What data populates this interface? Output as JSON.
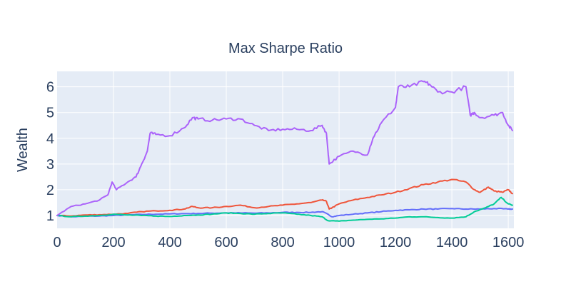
{
  "chart_data": {
    "type": "line",
    "title": "Max Sharpe Ratio",
    "xlabel": "",
    "ylabel": "Wealth",
    "xlim": [
      0,
      1620
    ],
    "ylim": [
      0.5,
      6.6
    ],
    "x_ticks": [
      0,
      200,
      400,
      600,
      800,
      1000,
      1200,
      1400,
      1600
    ],
    "y_ticks": [
      1,
      2,
      3,
      4,
      5,
      6
    ],
    "grid": true,
    "legend": "none",
    "plot_bg": "#e5ecf6",
    "series": [
      {
        "color": "#636efa",
        "points": [
          [
            0,
            1.0
          ],
          [
            50,
            0.95
          ],
          [
            100,
            0.97
          ],
          [
            150,
            0.98
          ],
          [
            200,
            1.0
          ],
          [
            250,
            1.02
          ],
          [
            300,
            1.04
          ],
          [
            350,
            1.05
          ],
          [
            400,
            1.06
          ],
          [
            450,
            1.07
          ],
          [
            500,
            1.08
          ],
          [
            550,
            1.09
          ],
          [
            600,
            1.1
          ],
          [
            650,
            1.1
          ],
          [
            700,
            1.09
          ],
          [
            750,
            1.1
          ],
          [
            800,
            1.12
          ],
          [
            850,
            1.12
          ],
          [
            900,
            1.12
          ],
          [
            940,
            1.15
          ],
          [
            960,
            1.05
          ],
          [
            975,
            0.95
          ],
          [
            1000,
            1.0
          ],
          [
            1050,
            1.05
          ],
          [
            1100,
            1.1
          ],
          [
            1150,
            1.15
          ],
          [
            1200,
            1.2
          ],
          [
            1250,
            1.22
          ],
          [
            1300,
            1.25
          ],
          [
            1350,
            1.25
          ],
          [
            1400,
            1.27
          ],
          [
            1450,
            1.25
          ],
          [
            1500,
            1.25
          ],
          [
            1550,
            1.27
          ],
          [
            1600,
            1.25
          ],
          [
            1615,
            1.25
          ]
        ]
      },
      {
        "color": "#ef553b",
        "points": [
          [
            0,
            1.0
          ],
          [
            50,
            0.98
          ],
          [
            100,
            1.02
          ],
          [
            150,
            1.03
          ],
          [
            200,
            1.05
          ],
          [
            250,
            1.08
          ],
          [
            300,
            1.15
          ],
          [
            350,
            1.18
          ],
          [
            400,
            1.2
          ],
          [
            450,
            1.25
          ],
          [
            480,
            1.35
          ],
          [
            500,
            1.3
          ],
          [
            550,
            1.3
          ],
          [
            600,
            1.35
          ],
          [
            650,
            1.4
          ],
          [
            700,
            1.3
          ],
          [
            750,
            1.35
          ],
          [
            800,
            1.4
          ],
          [
            850,
            1.45
          ],
          [
            900,
            1.5
          ],
          [
            940,
            1.6
          ],
          [
            955,
            1.55
          ],
          [
            965,
            1.25
          ],
          [
            975,
            1.3
          ],
          [
            1000,
            1.45
          ],
          [
            1050,
            1.6
          ],
          [
            1100,
            1.7
          ],
          [
            1150,
            1.8
          ],
          [
            1200,
            1.9
          ],
          [
            1250,
            2.05
          ],
          [
            1300,
            2.2
          ],
          [
            1350,
            2.3
          ],
          [
            1400,
            2.4
          ],
          [
            1450,
            2.3
          ],
          [
            1480,
            2.0
          ],
          [
            1500,
            1.9
          ],
          [
            1530,
            2.1
          ],
          [
            1550,
            1.95
          ],
          [
            1580,
            1.9
          ],
          [
            1600,
            2.0
          ],
          [
            1615,
            1.85
          ]
        ]
      },
      {
        "color": "#00cc96",
        "points": [
          [
            0,
            1.0
          ],
          [
            50,
            0.95
          ],
          [
            100,
            0.98
          ],
          [
            150,
            1.0
          ],
          [
            200,
            1.05
          ],
          [
            250,
            1.02
          ],
          [
            300,
            1.0
          ],
          [
            350,
            0.98
          ],
          [
            400,
            0.96
          ],
          [
            450,
            1.0
          ],
          [
            500,
            1.02
          ],
          [
            550,
            1.05
          ],
          [
            600,
            1.1
          ],
          [
            650,
            1.08
          ],
          [
            700,
            1.05
          ],
          [
            750,
            1.08
          ],
          [
            800,
            1.1
          ],
          [
            850,
            1.05
          ],
          [
            900,
            1.0
          ],
          [
            940,
            0.95
          ],
          [
            960,
            0.8
          ],
          [
            1000,
            0.78
          ],
          [
            1050,
            0.82
          ],
          [
            1100,
            0.85
          ],
          [
            1150,
            0.87
          ],
          [
            1200,
            0.9
          ],
          [
            1250,
            0.95
          ],
          [
            1300,
            0.95
          ],
          [
            1350,
            0.92
          ],
          [
            1400,
            0.9
          ],
          [
            1450,
            0.95
          ],
          [
            1480,
            1.15
          ],
          [
            1520,
            1.3
          ],
          [
            1550,
            1.45
          ],
          [
            1575,
            1.7
          ],
          [
            1600,
            1.45
          ],
          [
            1615,
            1.4
          ]
        ]
      },
      {
        "color": "#ab63fa",
        "points": [
          [
            0,
            1.0
          ],
          [
            50,
            1.35
          ],
          [
            100,
            1.45
          ],
          [
            150,
            1.6
          ],
          [
            180,
            1.8
          ],
          [
            195,
            2.3
          ],
          [
            210,
            2.0
          ],
          [
            250,
            2.3
          ],
          [
            280,
            2.5
          ],
          [
            300,
            3.0
          ],
          [
            320,
            3.5
          ],
          [
            330,
            4.2
          ],
          [
            350,
            4.15
          ],
          [
            400,
            4.1
          ],
          [
            450,
            4.4
          ],
          [
            480,
            4.8
          ],
          [
            500,
            4.75
          ],
          [
            550,
            4.7
          ],
          [
            600,
            4.75
          ],
          [
            650,
            4.75
          ],
          [
            700,
            4.5
          ],
          [
            750,
            4.3
          ],
          [
            800,
            4.35
          ],
          [
            850,
            4.35
          ],
          [
            900,
            4.3
          ],
          [
            940,
            4.5
          ],
          [
            955,
            4.2
          ],
          [
            965,
            3.0
          ],
          [
            1000,
            3.3
          ],
          [
            1050,
            3.5
          ],
          [
            1100,
            3.35
          ],
          [
            1120,
            4.0
          ],
          [
            1150,
            4.6
          ],
          [
            1200,
            5.2
          ],
          [
            1210,
            6.0
          ],
          [
            1250,
            6.0
          ],
          [
            1300,
            6.2
          ],
          [
            1320,
            6.1
          ],
          [
            1350,
            5.8
          ],
          [
            1400,
            5.8
          ],
          [
            1450,
            6.0
          ],
          [
            1465,
            4.9
          ],
          [
            1480,
            5.0
          ],
          [
            1500,
            4.8
          ],
          [
            1550,
            4.9
          ],
          [
            1580,
            5.0
          ],
          [
            1600,
            4.5
          ],
          [
            1615,
            4.3
          ]
        ]
      }
    ]
  }
}
